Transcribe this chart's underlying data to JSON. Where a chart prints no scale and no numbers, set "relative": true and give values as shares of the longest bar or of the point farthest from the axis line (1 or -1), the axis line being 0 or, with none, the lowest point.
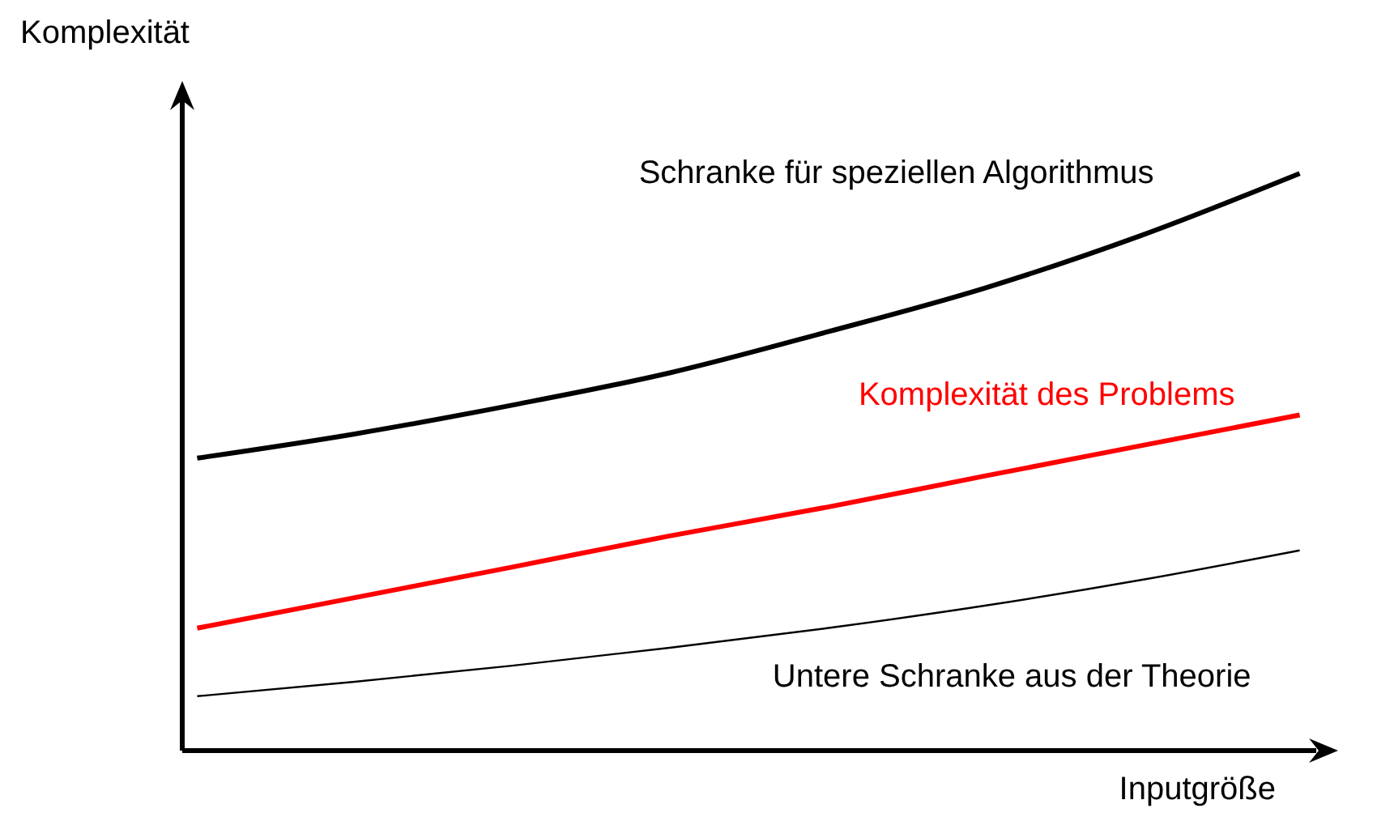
{
  "chart_data": {
    "type": "line",
    "relative": true,
    "xlabel": "Inputgröße",
    "ylabel": "Komplexität",
    "categories": [
      null,
      null,
      null,
      null,
      null,
      null,
      null,
      null
    ],
    "grid": false,
    "marker": "none",
    "series": [
      {
        "name": "Schranke für speziellen Algorithmus",
        "color": "#000000",
        "values": [
          0.506,
          0.548,
          0.598,
          0.654,
          0.725,
          0.801,
          0.893,
          1
        ]
      },
      {
        "name": "Komplexität des Problems",
        "color": "#ff0000",
        "values": [
          0.211,
          0.264,
          0.317,
          0.371,
          0.421,
          0.475,
          0.528,
          0.581
        ]
      },
      {
        "name": "Untere Schranke aus der Theorie",
        "color": "#000000",
        "values": [
          0.093,
          0.118,
          0.146,
          0.177,
          0.211,
          0.25,
          0.295,
          0.346
        ]
      }
    ]
  }
}
